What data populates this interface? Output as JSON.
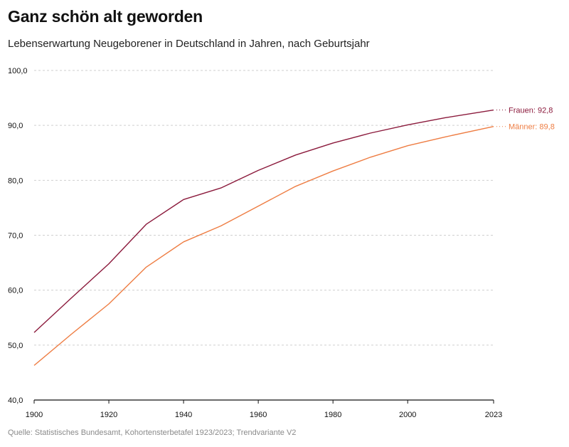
{
  "header": {
    "title": "Ganz schön alt geworden",
    "subtitle": "Lebenserwartung Neugeborener in Deutschland in Jahren, nach Geburtsjahr"
  },
  "footer": {
    "source": "Quelle: Statistisches Bundesamt, Kohortensterbetafel 1923/2023; Trendvariante V2"
  },
  "colors": {
    "frauen": "#8b1a3c",
    "maenner": "#ee7d43"
  },
  "chart_data": {
    "type": "line",
    "title": "Ganz schön alt geworden",
    "subtitle": "Lebenserwartung Neugeborener in Deutschland in Jahren, nach Geburtsjahr",
    "xlim": [
      1900,
      2023
    ],
    "ylim": [
      40,
      100
    ],
    "x_ticks": [
      1900,
      1920,
      1940,
      1960,
      1980,
      2000,
      2023
    ],
    "x_tick_labels": [
      "1900",
      "1920",
      "1940",
      "1960",
      "1980",
      "2000",
      "2023"
    ],
    "y_ticks": [
      40,
      50,
      60,
      70,
      80,
      90,
      100
    ],
    "y_tick_labels": [
      "40,0",
      "50,0",
      "60,0",
      "70,0",
      "80,0",
      "90,0",
      "100,0"
    ],
    "grid": true,
    "series": [
      {
        "name": "Frauen",
        "end_label": "Frauen: 92,8",
        "color": "#8b1a3c",
        "x": [
          1900,
          1910,
          1920,
          1930,
          1940,
          1950,
          1960,
          1970,
          1980,
          1990,
          2000,
          2010,
          2023
        ],
        "y": [
          52.3,
          58.6,
          64.8,
          72.0,
          76.5,
          78.6,
          81.8,
          84.6,
          86.8,
          88.6,
          90.1,
          91.4,
          92.8
        ]
      },
      {
        "name": "Männer",
        "end_label": "Männer: 89,8",
        "color": "#ee7d43",
        "x": [
          1900,
          1910,
          1920,
          1930,
          1940,
          1950,
          1960,
          1970,
          1980,
          1990,
          2000,
          2010,
          2023
        ],
        "y": [
          46.3,
          52.0,
          57.5,
          64.2,
          68.8,
          71.7,
          75.3,
          78.9,
          81.7,
          84.2,
          86.3,
          87.9,
          89.8
        ]
      }
    ]
  }
}
